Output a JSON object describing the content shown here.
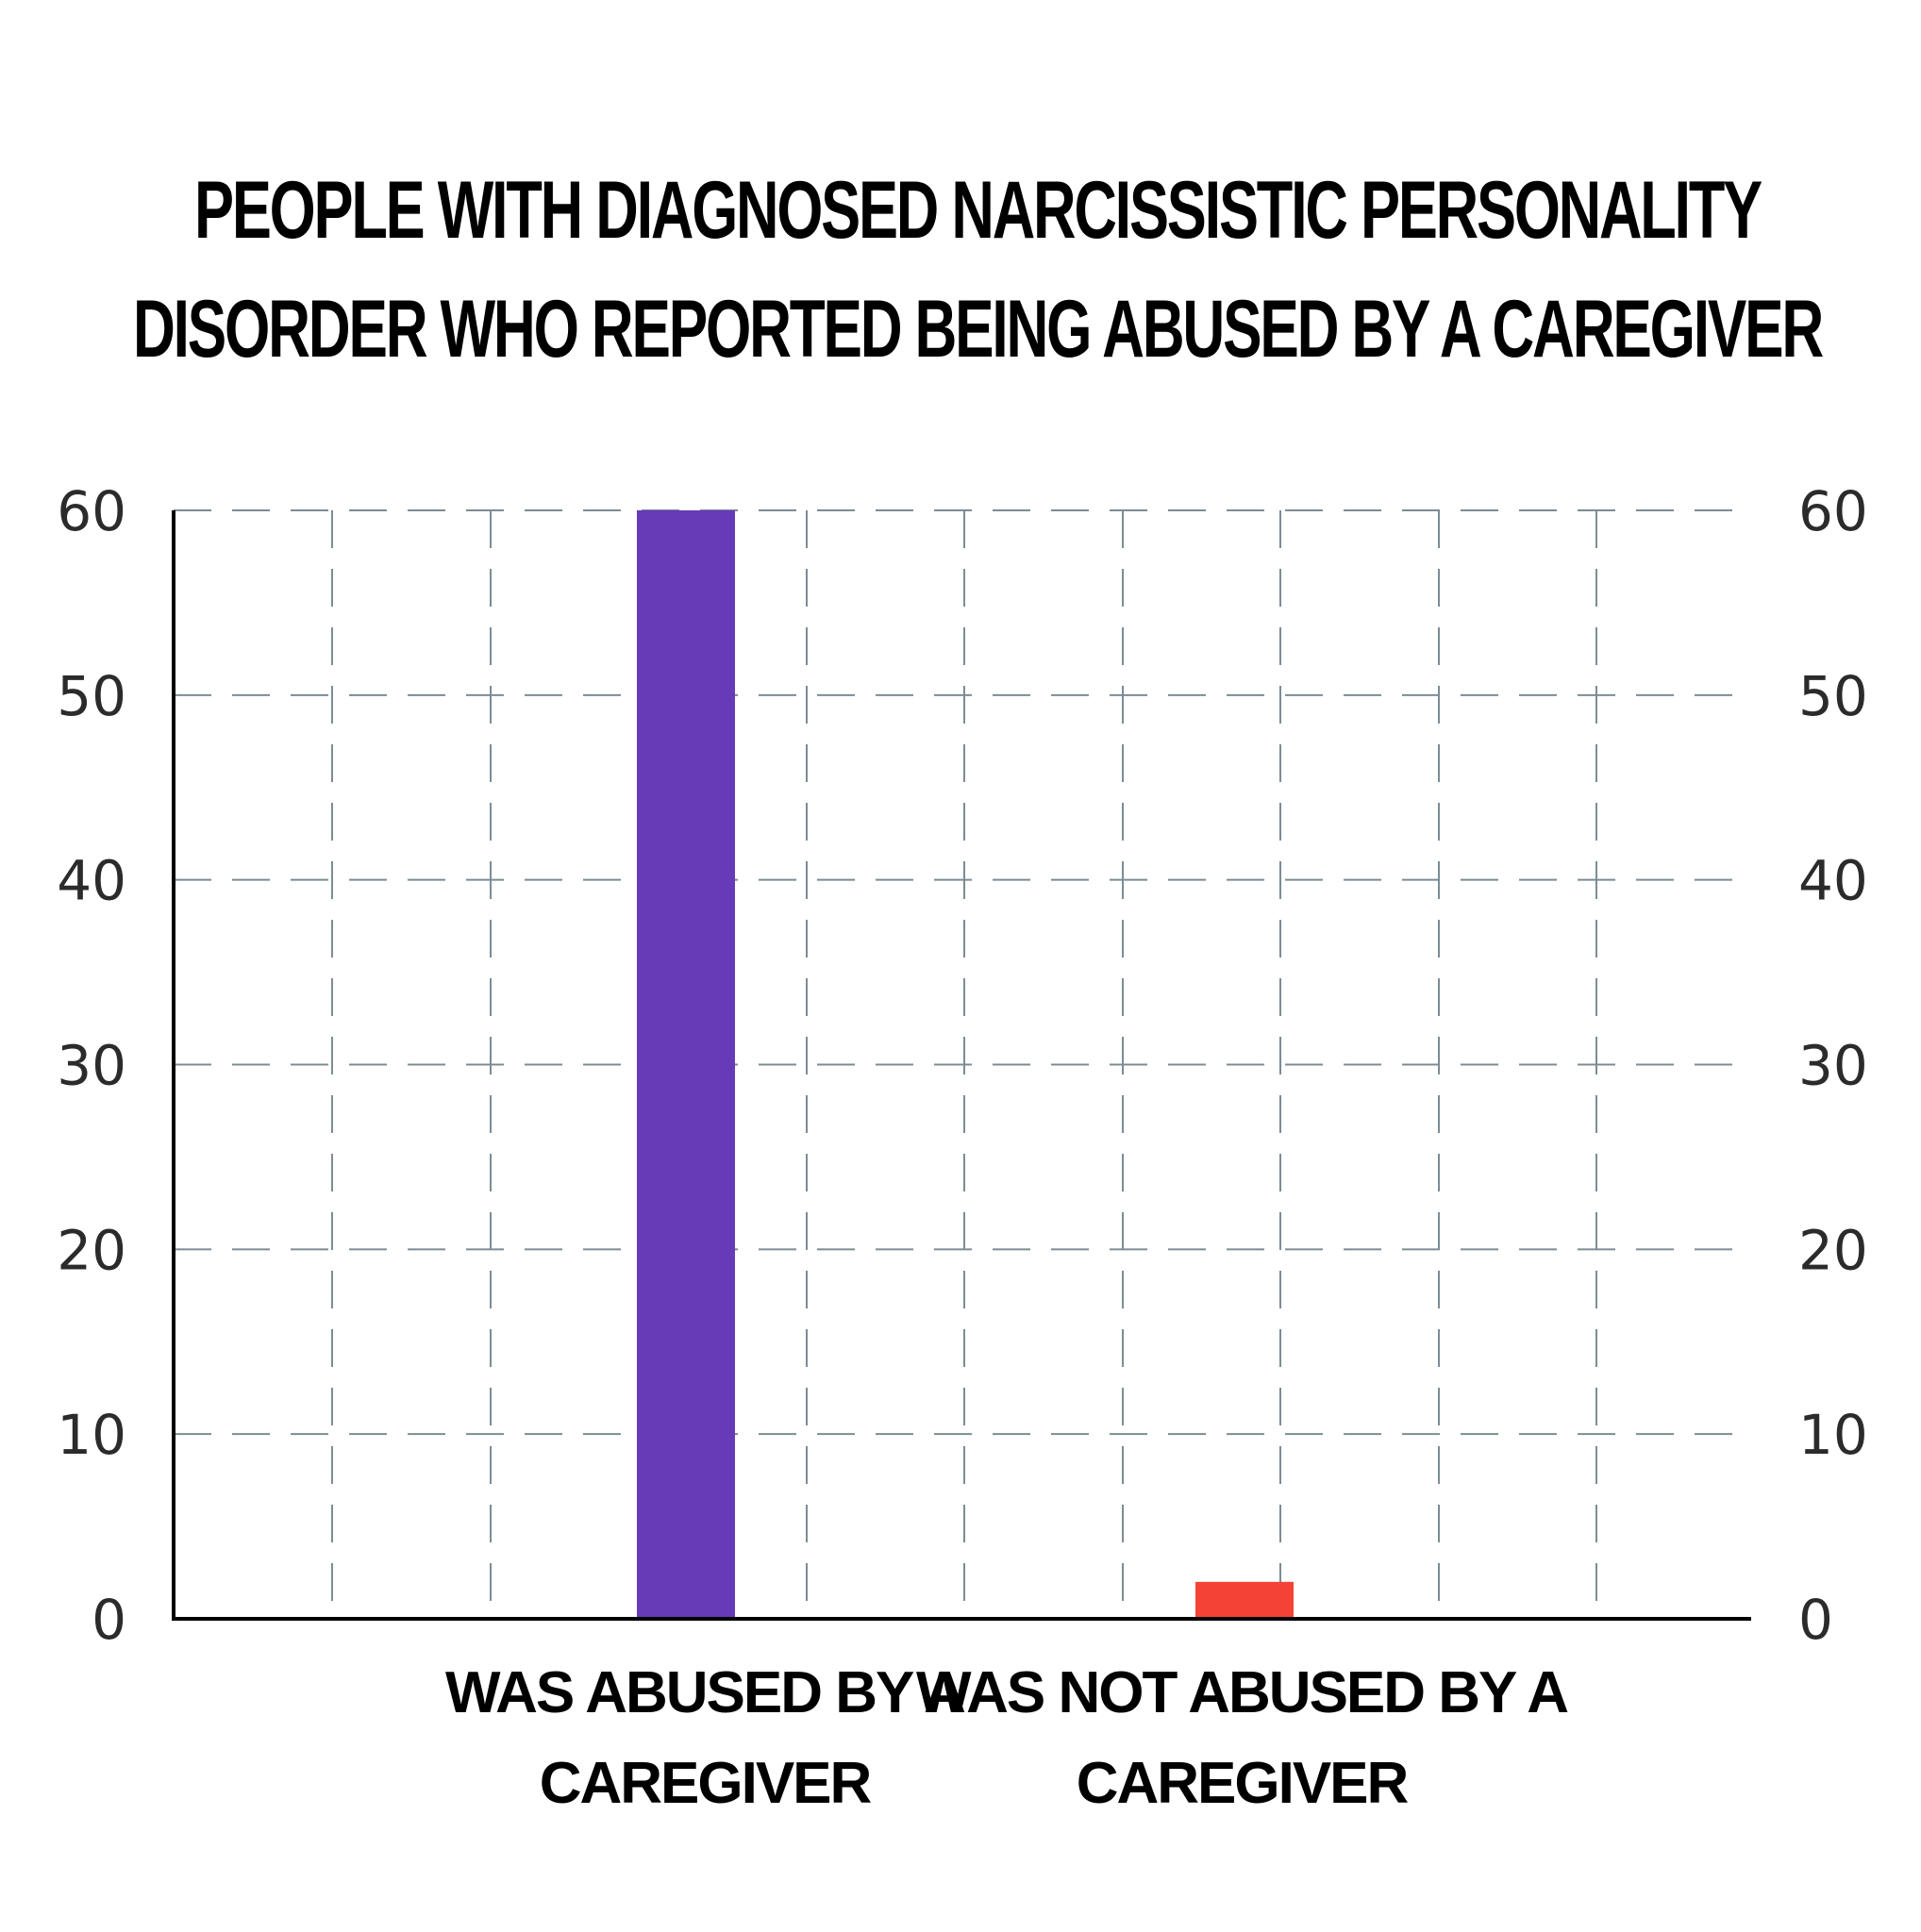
{
  "chart_data": {
    "type": "bar",
    "title_lines": [
      "PEOPLE WITH DIAGNOSED NARCISSISTIC PERSONALITY",
      "DISORDER WHO REPORTED BEING ABUSED BY A CAREGIVER"
    ],
    "categories": [
      {
        "label_lines": [
          "WAS ABUSED BY A",
          "CAREGIVER"
        ],
        "value": 60,
        "color": "#673ab7"
      },
      {
        "label_lines": [
          "WAS NOT ABUSED BY A",
          "CAREGIVER"
        ],
        "value": 2,
        "color": "#f44336"
      }
    ],
    "ylim": [
      0,
      60
    ],
    "yticks": [
      "0",
      "10",
      "20",
      "30",
      "40",
      "50",
      "60"
    ],
    "y_axis_sides": [
      "left",
      "right"
    ],
    "grid": true,
    "grid_style": "dashed",
    "legend": "none"
  }
}
